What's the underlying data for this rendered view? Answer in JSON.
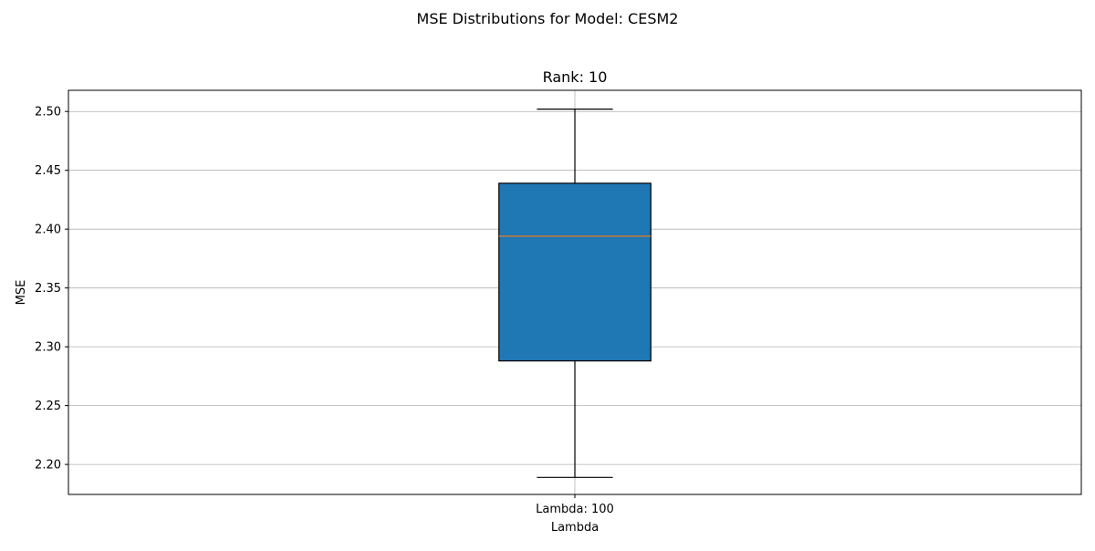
{
  "chart_data": {
    "type": "boxplot",
    "suptitle": "MSE Distributions for Model: CESM2",
    "title": "Rank: 10",
    "xlabel": "Lambda",
    "ylabel": "MSE",
    "ylim": [
      2.1745,
      2.518
    ],
    "yticks": [
      2.2,
      2.25,
      2.3,
      2.35,
      2.4,
      2.45,
      2.5
    ],
    "ytick_labels": [
      "2.20",
      "2.25",
      "2.30",
      "2.35",
      "2.40",
      "2.45",
      "2.50"
    ],
    "grid": true,
    "categories": [
      "Lambda: 100"
    ],
    "boxes": [
      {
        "category": "Lambda: 100",
        "whisker_low": 2.189,
        "q1": 2.288,
        "median": 2.394,
        "q3": 2.439,
        "whisker_high": 2.502
      }
    ],
    "colors": {
      "box_fill": "#1f77b4",
      "median": "#ff7f0e",
      "grid": "#b0b0b0",
      "edge": "#000000"
    }
  }
}
